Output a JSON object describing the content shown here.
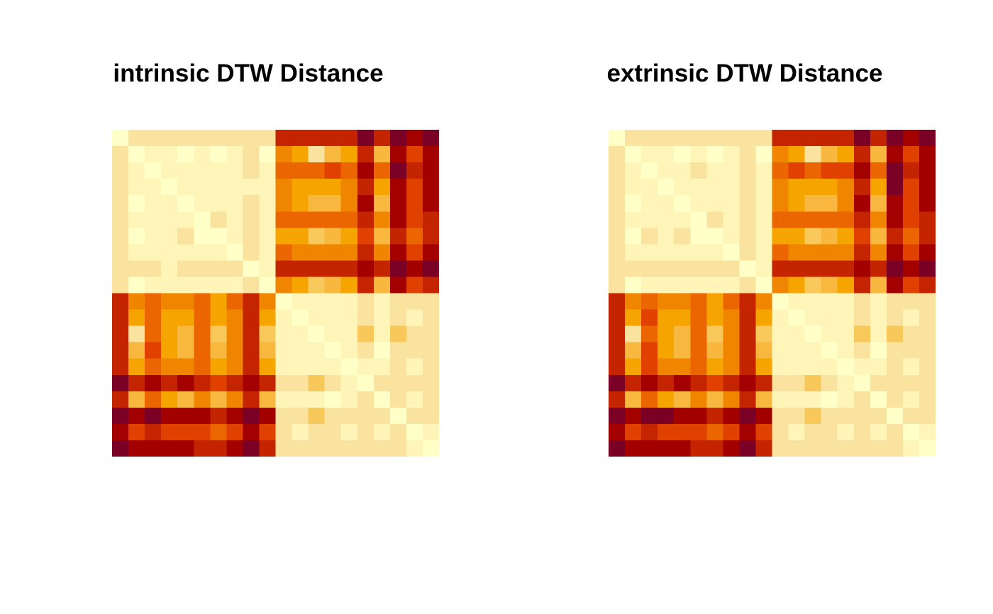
{
  "colors": {
    "palette": [
      "#FFFFC8",
      "#FFF5B8",
      "#FAE39F",
      "#F8C85A",
      "#F8B73F",
      "#F5A400",
      "#F08600",
      "#EB6500",
      "#E04000",
      "#C42400",
      "#A30000",
      "#7A0025"
    ],
    "background": "#FFFFFF"
  },
  "chart_data": [
    {
      "type": "heatmap",
      "title": "intrinsic DTW Distance",
      "rows": 20,
      "cols": 20,
      "scale": "0 = lowest distance (light yellow) to 11 = highest distance (dark red)",
      "values": [
        [
          0,
          2,
          2,
          2,
          2,
          2,
          2,
          2,
          2,
          2,
          9,
          9,
          9,
          9,
          9,
          11,
          9,
          11,
          10,
          11
        ],
        [
          2,
          0,
          1,
          1,
          0,
          1,
          0,
          1,
          2,
          0,
          6,
          5,
          2,
          4,
          5,
          9,
          4,
          10,
          8,
          10
        ],
        [
          2,
          1,
          0,
          1,
          1,
          1,
          1,
          1,
          2,
          1,
          7,
          7,
          7,
          8,
          7,
          10,
          7,
          11,
          9,
          10
        ],
        [
          2,
          1,
          1,
          0,
          1,
          1,
          1,
          1,
          1,
          1,
          6,
          5,
          5,
          5,
          6,
          9,
          5,
          10,
          8,
          10
        ],
        [
          2,
          0,
          1,
          1,
          0,
          1,
          1,
          1,
          2,
          1,
          6,
          5,
          4,
          4,
          6,
          10,
          4,
          10,
          8,
          10
        ],
        [
          2,
          1,
          1,
          1,
          1,
          0,
          2,
          1,
          2,
          1,
          7,
          7,
          7,
          7,
          7,
          9,
          6,
          10,
          8,
          9
        ],
        [
          2,
          0,
          1,
          1,
          2,
          0,
          0,
          1,
          2,
          1,
          5,
          5,
          3,
          4,
          5,
          8,
          4,
          9,
          7,
          9
        ],
        [
          2,
          1,
          1,
          1,
          1,
          1,
          1,
          0,
          2,
          1,
          7,
          6,
          6,
          6,
          6,
          9,
          6,
          10,
          8,
          10
        ],
        [
          2,
          2,
          2,
          1,
          2,
          2,
          2,
          2,
          0,
          1,
          9,
          9,
          9,
          9,
          9,
          10,
          9,
          11,
          10,
          11
        ],
        [
          2,
          0,
          1,
          1,
          1,
          1,
          1,
          1,
          2,
          0,
          6,
          5,
          3,
          4,
          5,
          9,
          4,
          10,
          8,
          9
        ],
        [
          9,
          6,
          7,
          6,
          6,
          7,
          5,
          7,
          9,
          6,
          0,
          1,
          1,
          1,
          1,
          2,
          1,
          2,
          2,
          2
        ],
        [
          9,
          5,
          7,
          5,
          5,
          7,
          5,
          6,
          9,
          5,
          1,
          0,
          1,
          1,
          1,
          2,
          1,
          2,
          1,
          2
        ],
        [
          9,
          2,
          7,
          5,
          4,
          7,
          3,
          6,
          9,
          3,
          1,
          1,
          0,
          1,
          1,
          3,
          1,
          3,
          2,
          2
        ],
        [
          9,
          4,
          8,
          5,
          4,
          7,
          4,
          6,
          9,
          4,
          1,
          1,
          1,
          0,
          1,
          2,
          0,
          2,
          2,
          2
        ],
        [
          9,
          5,
          7,
          6,
          6,
          7,
          5,
          6,
          9,
          5,
          1,
          1,
          1,
          1,
          0,
          1,
          1,
          2,
          1,
          2
        ],
        [
          11,
          9,
          10,
          9,
          10,
          9,
          8,
          9,
          10,
          9,
          2,
          2,
          3,
          2,
          1,
          0,
          2,
          2,
          2,
          2
        ],
        [
          9,
          4,
          7,
          5,
          4,
          6,
          4,
          6,
          9,
          4,
          1,
          1,
          1,
          0,
          1,
          2,
          0,
          2,
          1,
          2
        ],
        [
          11,
          10,
          11,
          10,
          10,
          10,
          9,
          10,
          11,
          10,
          2,
          2,
          3,
          2,
          2,
          2,
          2,
          0,
          2,
          2
        ],
        [
          10,
          8,
          9,
          8,
          8,
          8,
          7,
          8,
          10,
          8,
          2,
          1,
          2,
          2,
          1,
          2,
          1,
          2,
          0,
          1
        ],
        [
          11,
          10,
          10,
          10,
          10,
          9,
          9,
          10,
          11,
          9,
          2,
          2,
          2,
          2,
          2,
          2,
          2,
          2,
          1,
          0
        ]
      ]
    },
    {
      "type": "heatmap",
      "title": "extrinsic DTW Distance",
      "rows": 20,
      "cols": 20,
      "scale": "0 = lowest distance (light yellow) to 11 = highest distance (dark red)",
      "values": [
        [
          0,
          2,
          2,
          2,
          2,
          2,
          2,
          2,
          2,
          2,
          9,
          9,
          9,
          9,
          9,
          11,
          9,
          11,
          10,
          11
        ],
        [
          2,
          0,
          1,
          1,
          0,
          1,
          0,
          1,
          2,
          0,
          6,
          5,
          2,
          4,
          5,
          9,
          4,
          10,
          8,
          10
        ],
        [
          2,
          1,
          0,
          1,
          1,
          2,
          1,
          1,
          2,
          1,
          7,
          8,
          7,
          8,
          8,
          10,
          7,
          11,
          9,
          10
        ],
        [
          2,
          1,
          1,
          0,
          1,
          1,
          1,
          1,
          2,
          1,
          6,
          5,
          5,
          5,
          6,
          9,
          5,
          11,
          8,
          10
        ],
        [
          2,
          0,
          1,
          1,
          0,
          1,
          1,
          1,
          2,
          1,
          6,
          5,
          4,
          4,
          6,
          10,
          4,
          10,
          8,
          10
        ],
        [
          2,
          1,
          1,
          1,
          1,
          0,
          2,
          1,
          2,
          1,
          7,
          7,
          7,
          7,
          7,
          9,
          6,
          10,
          8,
          9
        ],
        [
          2,
          0,
          2,
          1,
          2,
          0,
          0,
          1,
          2,
          1,
          5,
          5,
          3,
          4,
          5,
          8,
          4,
          9,
          7,
          9
        ],
        [
          2,
          1,
          1,
          1,
          1,
          1,
          1,
          0,
          2,
          1,
          7,
          6,
          6,
          6,
          6,
          9,
          6,
          10,
          8,
          10
        ],
        [
          2,
          2,
          2,
          2,
          2,
          2,
          2,
          2,
          0,
          1,
          9,
          9,
          9,
          9,
          9,
          10,
          9,
          11,
          10,
          11
        ],
        [
          2,
          0,
          1,
          1,
          1,
          1,
          1,
          1,
          2,
          0,
          6,
          5,
          3,
          4,
          5,
          9,
          4,
          10,
          8,
          9
        ],
        [
          9,
          6,
          7,
          6,
          6,
          7,
          5,
          7,
          9,
          6,
          0,
          1,
          1,
          1,
          1,
          2,
          1,
          2,
          2,
          2
        ],
        [
          9,
          5,
          8,
          5,
          5,
          7,
          5,
          6,
          9,
          5,
          1,
          0,
          1,
          1,
          1,
          2,
          1,
          2,
          1,
          2
        ],
        [
          9,
          2,
          7,
          5,
          4,
          7,
          3,
          6,
          9,
          3,
          1,
          1,
          0,
          1,
          1,
          3,
          1,
          3,
          2,
          2
        ],
        [
          9,
          4,
          8,
          5,
          4,
          7,
          4,
          6,
          9,
          4,
          1,
          1,
          1,
          0,
          1,
          2,
          0,
          2,
          2,
          2
        ],
        [
          9,
          5,
          8,
          6,
          6,
          7,
          5,
          6,
          9,
          5,
          1,
          1,
          1,
          1,
          0,
          1,
          1,
          2,
          1,
          2
        ],
        [
          11,
          9,
          10,
          9,
          10,
          9,
          8,
          9,
          10,
          9,
          2,
          2,
          3,
          2,
          1,
          0,
          2,
          2,
          2,
          2
        ],
        [
          9,
          4,
          7,
          5,
          4,
          6,
          4,
          6,
          9,
          4,
          1,
          1,
          1,
          0,
          1,
          2,
          0,
          2,
          1,
          2
        ],
        [
          11,
          10,
          11,
          11,
          10,
          10,
          9,
          10,
          11,
          10,
          2,
          2,
          3,
          2,
          2,
          2,
          2,
          0,
          2,
          2
        ],
        [
          10,
          8,
          9,
          8,
          8,
          8,
          7,
          8,
          10,
          8,
          2,
          1,
          2,
          2,
          1,
          2,
          1,
          2,
          0,
          1
        ],
        [
          11,
          10,
          10,
          10,
          10,
          9,
          9,
          10,
          11,
          9,
          2,
          2,
          2,
          2,
          2,
          2,
          2,
          2,
          1,
          0
        ]
      ]
    }
  ]
}
